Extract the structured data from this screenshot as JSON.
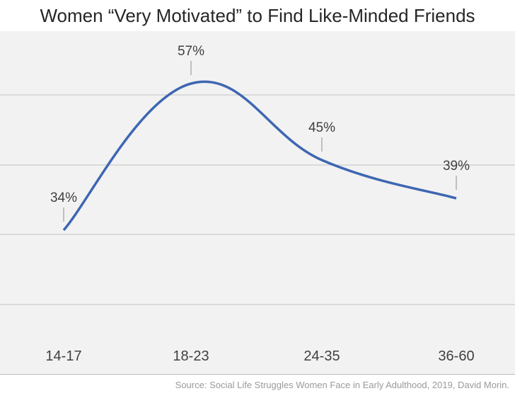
{
  "chart_data": {
    "type": "line",
    "title": "Women “Very Motivated” to Find Like-Minded Friends",
    "categories": [
      "14-17",
      "18-23",
      "24-35",
      "36-60"
    ],
    "series": [
      {
        "values": [
          34,
          57,
          45,
          39
        ],
        "color": "#3e67b1"
      }
    ],
    "data_labels": [
      "34%",
      "57%",
      "45%",
      "39%"
    ],
    "smooth": true,
    "grid": true,
    "legend": "none",
    "source": "Source: Social Life Struggles Women Face in Early Adulthood, 2019, David Morin."
  }
}
